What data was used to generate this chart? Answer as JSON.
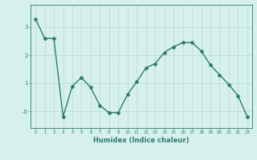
{
  "x": [
    0,
    1,
    2,
    3,
    4,
    5,
    6,
    7,
    8,
    9,
    10,
    11,
    12,
    13,
    14,
    15,
    16,
    17,
    18,
    19,
    20,
    21,
    22,
    23
  ],
  "y": [
    3.3,
    2.6,
    2.6,
    -0.2,
    0.9,
    1.2,
    0.85,
    0.2,
    -0.05,
    -0.05,
    0.6,
    1.05,
    1.55,
    1.7,
    2.1,
    2.3,
    2.45,
    2.45,
    2.15,
    1.65,
    1.3,
    0.95,
    0.55,
    -0.2
  ],
  "line_color": "#2e7d6e",
  "marker": "D",
  "markersize": 2,
  "linewidth": 1.0,
  "xlabel": "Humidex (Indice chaleur)",
  "xlabel_fontsize": 6,
  "xlabel_color": "#2e7d6e",
  "bg_color": "#d6f0ee",
  "grid_color": "#b8d8d4",
  "tick_color": "#2e7d6e",
  "spine_color": "#2e7d6e",
  "ylim": [
    -0.6,
    3.8
  ],
  "xlim": [
    -0.5,
    23.5
  ],
  "xtick_fontsize": 4,
  "ytick_fontsize": 5
}
